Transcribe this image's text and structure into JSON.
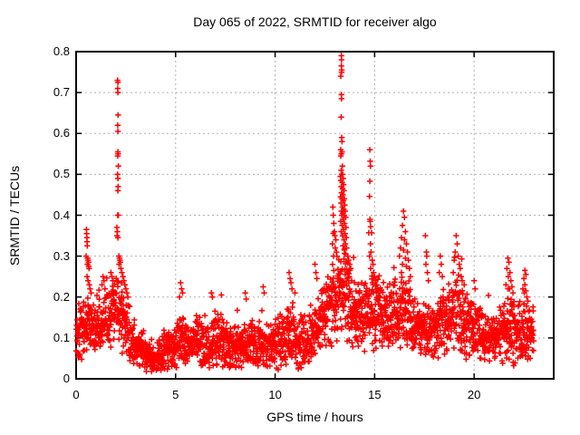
{
  "chart_data": {
    "type": "scatter",
    "title": "Day 065 of 2022, SRMTID for receiver algo",
    "xlabel": "GPS time / hours",
    "ylabel": "SRMTID / TECUs",
    "xlim": [
      0,
      24
    ],
    "ylim": [
      0,
      0.8
    ],
    "xtick_values": [
      0,
      5,
      10,
      15,
      20
    ],
    "xtick_labels": [
      "0",
      "5",
      "10",
      "15",
      "20"
    ],
    "ytick_values": [
      0,
      0.1,
      0.2,
      0.3,
      0.4,
      0.5,
      0.6,
      0.7,
      0.8
    ],
    "ytick_labels": [
      "0",
      "0.1",
      "0.2",
      "0.3",
      "0.4",
      "0.5",
      "0.6",
      "0.7",
      "0.8"
    ],
    "grid": true,
    "grid_color": "#b0b0b0",
    "axis_color": "#000000",
    "marker": {
      "symbol": "+",
      "color": "#ff0000"
    },
    "sampling": {
      "start_hour": 0.004,
      "end_hour": 23.0,
      "interval_hours": 0.008333,
      "seed": 1337
    },
    "baseline_profile": [
      [
        0.0,
        0.115,
        0.05
      ],
      [
        0.5,
        0.13,
        0.06
      ],
      [
        1.0,
        0.13,
        0.05
      ],
      [
        1.5,
        0.14,
        0.05
      ],
      [
        2.0,
        0.17,
        0.06
      ],
      [
        2.3,
        0.16,
        0.07
      ],
      [
        2.6,
        0.12,
        0.05
      ],
      [
        3.0,
        0.08,
        0.04
      ],
      [
        3.5,
        0.06,
        0.035
      ],
      [
        4.0,
        0.055,
        0.03
      ],
      [
        4.5,
        0.07,
        0.035
      ],
      [
        5.0,
        0.08,
        0.04
      ],
      [
        5.3,
        0.1,
        0.05
      ],
      [
        5.7,
        0.085,
        0.04
      ],
      [
        6.2,
        0.09,
        0.045
      ],
      [
        6.8,
        0.095,
        0.05
      ],
      [
        7.3,
        0.1,
        0.05
      ],
      [
        7.8,
        0.075,
        0.04
      ],
      [
        8.3,
        0.08,
        0.04
      ],
      [
        8.8,
        0.09,
        0.045
      ],
      [
        9.3,
        0.08,
        0.045
      ],
      [
        9.8,
        0.075,
        0.04
      ],
      [
        10.3,
        0.1,
        0.055
      ],
      [
        10.8,
        0.11,
        0.06
      ],
      [
        11.3,
        0.09,
        0.05
      ],
      [
        11.8,
        0.1,
        0.05
      ],
      [
        12.2,
        0.14,
        0.06
      ],
      [
        12.7,
        0.16,
        0.07
      ],
      [
        13.1,
        0.2,
        0.08
      ],
      [
        13.5,
        0.22,
        0.09
      ],
      [
        13.9,
        0.16,
        0.06
      ],
      [
        14.3,
        0.15,
        0.06
      ],
      [
        14.8,
        0.17,
        0.07
      ],
      [
        15.2,
        0.16,
        0.07
      ],
      [
        15.7,
        0.15,
        0.06
      ],
      [
        16.2,
        0.17,
        0.07
      ],
      [
        16.7,
        0.16,
        0.07
      ],
      [
        17.2,
        0.13,
        0.05
      ],
      [
        17.7,
        0.12,
        0.05
      ],
      [
        18.2,
        0.13,
        0.06
      ],
      [
        18.7,
        0.15,
        0.065
      ],
      [
        19.2,
        0.16,
        0.07
      ],
      [
        19.7,
        0.13,
        0.06
      ],
      [
        20.2,
        0.11,
        0.05
      ],
      [
        20.7,
        0.1,
        0.045
      ],
      [
        21.2,
        0.1,
        0.05
      ],
      [
        21.7,
        0.13,
        0.07
      ],
      [
        22.2,
        0.12,
        0.06
      ],
      [
        22.6,
        0.11,
        0.055
      ],
      [
        23.0,
        0.115,
        0.04
      ]
    ],
    "spike_points": [
      [
        0.5,
        0.3
      ],
      [
        0.52,
        0.365
      ],
      [
        0.53,
        0.355
      ],
      [
        0.54,
        0.345
      ],
      [
        0.55,
        0.335
      ],
      [
        0.56,
        0.325
      ],
      [
        0.55,
        0.25
      ],
      [
        0.57,
        0.28
      ],
      [
        0.58,
        0.295
      ],
      [
        0.6,
        0.29
      ],
      [
        0.6,
        0.24
      ],
      [
        0.62,
        0.285
      ],
      [
        0.63,
        0.275
      ],
      [
        0.65,
        0.27
      ],
      [
        0.66,
        0.23
      ],
      [
        0.7,
        0.22
      ],
      [
        0.75,
        0.21
      ],
      [
        1.3,
        0.23
      ],
      [
        1.35,
        0.25
      ],
      [
        1.4,
        0.24
      ],
      [
        1.45,
        0.22
      ],
      [
        1.75,
        0.26
      ],
      [
        1.8,
        0.25
      ],
      [
        1.85,
        0.24
      ],
      [
        2.08,
        0.73
      ],
      [
        2.1,
        0.725
      ],
      [
        2.09,
        0.71
      ],
      [
        2.1,
        0.7
      ],
      [
        2.11,
        0.645
      ],
      [
        2.09,
        0.62
      ],
      [
        2.1,
        0.605
      ],
      [
        2.1,
        0.555
      ],
      [
        2.11,
        0.55
      ],
      [
        2.09,
        0.545
      ],
      [
        2.12,
        0.52
      ],
      [
        2.08,
        0.5
      ],
      [
        2.1,
        0.49
      ],
      [
        2.11,
        0.47
      ],
      [
        2.1,
        0.46
      ],
      [
        2.12,
        0.4
      ],
      [
        2.09,
        0.4
      ],
      [
        2.05,
        0.37
      ],
      [
        2.07,
        0.36
      ],
      [
        2.06,
        0.35
      ],
      [
        2.1,
        0.345
      ],
      [
        2.15,
        0.3
      ],
      [
        2.16,
        0.28
      ],
      [
        2.18,
        0.295
      ],
      [
        2.2,
        0.29
      ],
      [
        2.22,
        0.285
      ],
      [
        2.25,
        0.27
      ],
      [
        2.28,
        0.235
      ],
      [
        2.3,
        0.26
      ],
      [
        2.35,
        0.25
      ],
      [
        2.4,
        0.24
      ],
      [
        2.45,
        0.23
      ],
      [
        2.5,
        0.22
      ],
      [
        2.55,
        0.21
      ],
      [
        2.6,
        0.2
      ],
      [
        5.2,
        0.2
      ],
      [
        5.25,
        0.235
      ],
      [
        5.3,
        0.22
      ],
      [
        5.35,
        0.21
      ],
      [
        6.8,
        0.21
      ],
      [
        6.85,
        0.2
      ],
      [
        7.3,
        0.205
      ],
      [
        8.5,
        0.21
      ],
      [
        8.55,
        0.195
      ],
      [
        9.4,
        0.225
      ],
      [
        9.45,
        0.21
      ],
      [
        10.7,
        0.26
      ],
      [
        10.75,
        0.245
      ],
      [
        10.8,
        0.235
      ],
      [
        10.85,
        0.22
      ],
      [
        11.0,
        0.21
      ],
      [
        12.0,
        0.28
      ],
      [
        12.05,
        0.26
      ],
      [
        12.1,
        0.245
      ],
      [
        12.88,
        0.33
      ],
      [
        12.9,
        0.42
      ],
      [
        12.92,
        0.4
      ],
      [
        12.94,
        0.3
      ],
      [
        12.95,
        0.38
      ],
      [
        12.98,
        0.36
      ],
      [
        13.0,
        0.35
      ],
      [
        13.02,
        0.32
      ],
      [
        13.05,
        0.34
      ],
      [
        13.08,
        0.31
      ],
      [
        13.1,
        0.3
      ],
      [
        13.28,
        0.495
      ],
      [
        13.29,
        0.445
      ],
      [
        13.3,
        0.74
      ],
      [
        13.3,
        0.56
      ],
      [
        13.3,
        0.545
      ],
      [
        13.3,
        0.485
      ],
      [
        13.3,
        0.385
      ],
      [
        13.31,
        0.43
      ],
      [
        13.32,
        0.64
      ],
      [
        13.32,
        0.51
      ],
      [
        13.32,
        0.47
      ],
      [
        13.32,
        0.36
      ],
      [
        13.33,
        0.79
      ],
      [
        13.33,
        0.765
      ],
      [
        13.33,
        0.695
      ],
      [
        13.33,
        0.55
      ],
      [
        13.33,
        0.41
      ],
      [
        13.34,
        0.78
      ],
      [
        13.34,
        0.75
      ],
      [
        13.34,
        0.685
      ],
      [
        13.34,
        0.455
      ],
      [
        13.35,
        0.755
      ],
      [
        13.35,
        0.59
      ],
      [
        13.35,
        0.5
      ],
      [
        13.35,
        0.4
      ],
      [
        13.36,
        0.58
      ],
      [
        13.36,
        0.555
      ],
      [
        13.36,
        0.44
      ],
      [
        13.37,
        0.48
      ],
      [
        13.37,
        0.375
      ],
      [
        13.38,
        0.52
      ],
      [
        13.38,
        0.42
      ],
      [
        13.39,
        0.465
      ],
      [
        13.39,
        0.35
      ],
      [
        13.4,
        0.5
      ],
      [
        13.4,
        0.405
      ],
      [
        13.41,
        0.45
      ],
      [
        13.41,
        0.325
      ],
      [
        13.42,
        0.49
      ],
      [
        13.42,
        0.39
      ],
      [
        13.43,
        0.435
      ],
      [
        13.44,
        0.475
      ],
      [
        13.44,
        0.365
      ],
      [
        13.45,
        0.415
      ],
      [
        13.46,
        0.46
      ],
      [
        13.46,
        0.34
      ],
      [
        13.47,
        0.4
      ],
      [
        13.48,
        0.44
      ],
      [
        13.48,
        0.315
      ],
      [
        13.49,
        0.38
      ],
      [
        13.5,
        0.425
      ],
      [
        13.51,
        0.355
      ],
      [
        13.52,
        0.41
      ],
      [
        13.53,
        0.33
      ],
      [
        13.55,
        0.395
      ],
      [
        13.55,
        0.305
      ],
      [
        13.56,
        0.37
      ],
      [
        13.58,
        0.345
      ],
      [
        13.6,
        0.32
      ],
      [
        13.62,
        0.26
      ],
      [
        13.65,
        0.3
      ],
      [
        13.7,
        0.29
      ],
      [
        13.72,
        0.25
      ],
      [
        13.75,
        0.28
      ],
      [
        13.8,
        0.27
      ],
      [
        13.85,
        0.24
      ],
      [
        14.71,
        0.357
      ],
      [
        14.74,
        0.446
      ],
      [
        14.75,
        0.3
      ],
      [
        14.76,
        0.56
      ],
      [
        14.76,
        0.483
      ],
      [
        14.77,
        0.39
      ],
      [
        14.78,
        0.532
      ],
      [
        14.78,
        0.385
      ],
      [
        14.79,
        0.52
      ],
      [
        14.79,
        0.33
      ],
      [
        14.8,
        0.372
      ],
      [
        14.8,
        0.27
      ],
      [
        14.82,
        0.31
      ],
      [
        14.85,
        0.357
      ],
      [
        14.88,
        0.29
      ],
      [
        14.9,
        0.235
      ],
      [
        14.92,
        0.28
      ],
      [
        14.95,
        0.26
      ],
      [
        15.0,
        0.25
      ],
      [
        15.05,
        0.24
      ],
      [
        15.1,
        0.23
      ],
      [
        15.15,
        0.22
      ],
      [
        15.2,
        0.21
      ],
      [
        16.25,
        0.3
      ],
      [
        16.3,
        0.32
      ],
      [
        16.35,
        0.345
      ],
      [
        16.35,
        0.26
      ],
      [
        16.4,
        0.375
      ],
      [
        16.4,
        0.28
      ],
      [
        16.45,
        0.41
      ],
      [
        16.45,
        0.315
      ],
      [
        16.5,
        0.395
      ],
      [
        16.5,
        0.34
      ],
      [
        16.55,
        0.36
      ],
      [
        16.55,
        0.295
      ],
      [
        16.6,
        0.33
      ],
      [
        16.6,
        0.275
      ],
      [
        16.65,
        0.31
      ],
      [
        16.7,
        0.29
      ],
      [
        16.75,
        0.27
      ],
      [
        16.8,
        0.25
      ],
      [
        17.55,
        0.35
      ],
      [
        17.6,
        0.31
      ],
      [
        17.62,
        0.3
      ],
      [
        17.58,
        0.28
      ],
      [
        17.65,
        0.26
      ],
      [
        17.7,
        0.24
      ],
      [
        18.25,
        0.26
      ],
      [
        18.3,
        0.3
      ],
      [
        18.35,
        0.28
      ],
      [
        18.4,
        0.25
      ],
      [
        18.95,
        0.26
      ],
      [
        19.0,
        0.29
      ],
      [
        19.05,
        0.31
      ],
      [
        19.1,
        0.35
      ],
      [
        19.15,
        0.33
      ],
      [
        19.2,
        0.3
      ],
      [
        19.25,
        0.28
      ],
      [
        19.3,
        0.27
      ],
      [
        19.35,
        0.25
      ],
      [
        19.4,
        0.24
      ],
      [
        19.5,
        0.23
      ],
      [
        20.0,
        0.24
      ],
      [
        20.05,
        0.22
      ],
      [
        21.6,
        0.23
      ],
      [
        21.65,
        0.27
      ],
      [
        21.7,
        0.295
      ],
      [
        21.72,
        0.25
      ],
      [
        21.75,
        0.285
      ],
      [
        21.78,
        0.22
      ],
      [
        21.8,
        0.26
      ],
      [
        21.85,
        0.24
      ],
      [
        21.9,
        0.225
      ],
      [
        21.95,
        0.21
      ],
      [
        22.45,
        0.22
      ],
      [
        22.5,
        0.245
      ],
      [
        22.52,
        0.21
      ],
      [
        22.55,
        0.265
      ],
      [
        22.55,
        0.23
      ],
      [
        22.6,
        0.255
      ],
      [
        22.6,
        0.215
      ],
      [
        22.65,
        0.2
      ],
      [
        22.7,
        0.19
      ]
    ]
  }
}
